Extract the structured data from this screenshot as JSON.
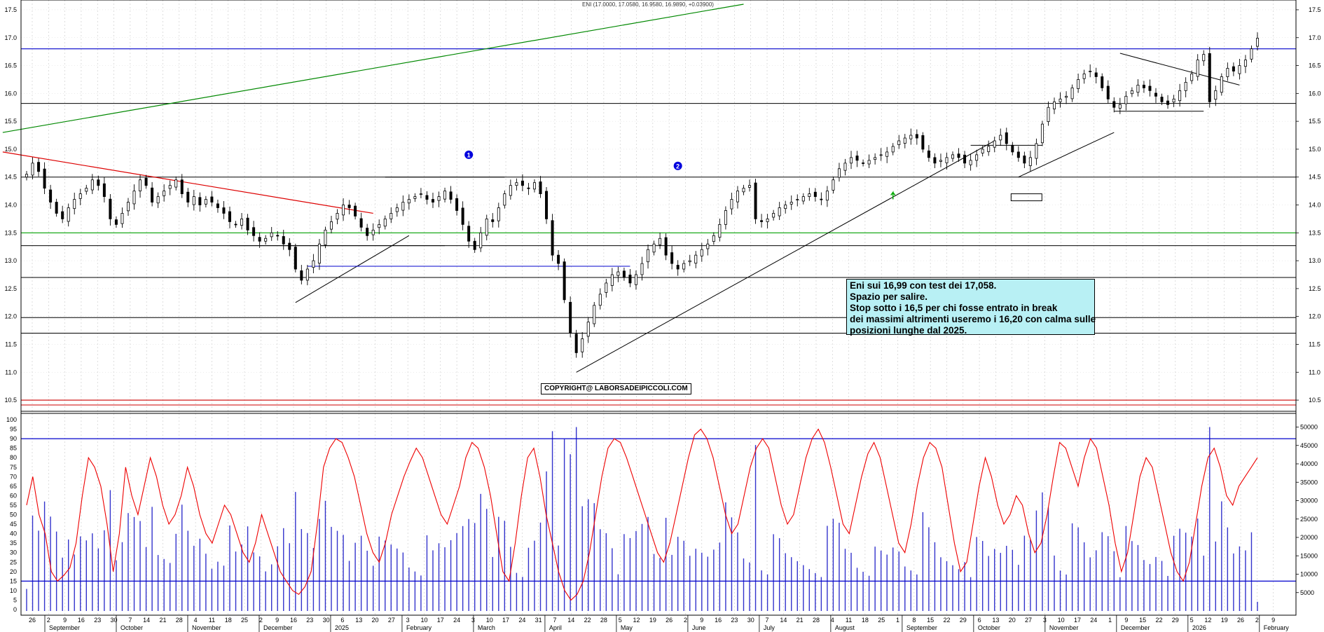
{
  "header": {
    "quote": "ENI (17.0000, 17.0580, 16.9580, 16.9890, +0.03900)"
  },
  "annotations": {
    "note_lines": [
      "Eni sui 16,99 con test dei 17,058.",
      "Spazio per salire.",
      "Stop sotto i 16,5 per chi fosse entrato in break",
      "dei massimi altrimenti useremo i 16,20 con calma sulle",
      "posizioni lunghe dal 2025."
    ],
    "copyright": "COPYRIGHT@ LABORSADEIPICCOLI.COM",
    "markers": [
      "1",
      "2"
    ]
  },
  "colors": {
    "candle": "#000000",
    "support_line": "#000000",
    "resistance_blue": "#0000cc",
    "support_green": "#00a000",
    "stop_red": "#cc0000",
    "trend_green": "#008800",
    "trend_red": "#dd0000",
    "oscillator": "#ee0000",
    "volume": "#3333cc",
    "note_bg": "#b8f0f4"
  },
  "chart_data": [
    {
      "type": "candlestick",
      "title": "ENI",
      "ylim": [
        10.35,
        17.6
      ],
      "y_ticks": [
        "10.5",
        "11.0",
        "11.5",
        "12.0",
        "12.5",
        "13.0",
        "13.5",
        "14.0",
        "14.5",
        "15.0",
        "15.5",
        "16.0",
        "16.5",
        "17.0",
        "17.5"
      ],
      "last": {
        "open": 17.0,
        "high": 17.058,
        "low": 16.958,
        "close": 16.989,
        "change": 0.039
      },
      "x_months": [
        "September",
        "October",
        "November",
        "December",
        "2025",
        "February",
        "March",
        "April",
        "May",
        "June",
        "July",
        "August",
        "September",
        "October",
        "November",
        "December",
        "2026",
        "February"
      ],
      "x_days": [
        "26",
        "2",
        "9",
        "16",
        "23",
        "30",
        "7",
        "14",
        "21",
        "28",
        "4",
        "11",
        "18",
        "25",
        "2",
        "9",
        "16",
        "23",
        "30",
        "6",
        "13",
        "20",
        "27",
        "3",
        "10",
        "17",
        "24",
        "3",
        "10",
        "17",
        "24",
        "31",
        "7",
        "14",
        "22",
        "28",
        "5",
        "12",
        "19",
        "26",
        "2",
        "9",
        "16",
        "23",
        "30",
        "7",
        "14",
        "21",
        "28",
        "4",
        "11",
        "18",
        "25",
        "1",
        "8",
        "15",
        "22",
        "29",
        "6",
        "13",
        "20",
        "27",
        "3",
        "10",
        "17",
        "24",
        "1",
        "9",
        "15",
        "22",
        "29",
        "5",
        "12",
        "19",
        "26",
        "2",
        "9"
      ],
      "horizontal_levels": [
        {
          "value": 16.8,
          "color": "blue"
        },
        {
          "value": 15.82,
          "color": "black"
        },
        {
          "value": 14.5,
          "color": "black"
        },
        {
          "value": 13.5,
          "color": "green"
        },
        {
          "value": 13.27,
          "color": "black"
        },
        {
          "value": 12.7,
          "color": "black"
        },
        {
          "value": 11.98,
          "color": "black"
        },
        {
          "value": 11.7,
          "color": "black"
        },
        {
          "value": 10.5,
          "color": "red"
        }
      ],
      "close_series": [
        14.55,
        14.75,
        14.6,
        14.3,
        14.05,
        13.85,
        13.75,
        13.95,
        14.1,
        14.2,
        14.3,
        14.45,
        14.35,
        14.15,
        13.75,
        13.65,
        13.85,
        14.05,
        14.25,
        14.45,
        14.35,
        14.05,
        14.15,
        14.25,
        14.35,
        14.45,
        14.2,
        14.05,
        14.15,
        14.0,
        14.1,
        14.05,
        13.95,
        13.85,
        13.7,
        13.65,
        13.75,
        13.55,
        13.45,
        13.35,
        13.4,
        13.5,
        13.45,
        13.3,
        13.2,
        12.85,
        12.65,
        12.85,
        13.0,
        13.3,
        13.55,
        13.7,
        13.85,
        14.0,
        13.95,
        13.8,
        13.6,
        13.45,
        13.55,
        13.65,
        13.75,
        13.85,
        13.95,
        14.05,
        14.1,
        14.15,
        14.2,
        14.1,
        14.05,
        14.15,
        14.25,
        14.1,
        13.9,
        13.65,
        13.35,
        13.2,
        13.5,
        13.75,
        13.7,
        13.95,
        14.2,
        14.35,
        14.4,
        14.35,
        14.3,
        14.4,
        14.2,
        13.75,
        13.1,
        12.95,
        12.3,
        11.7,
        11.35,
        11.6,
        11.9,
        12.2,
        12.4,
        12.6,
        12.75,
        12.8,
        12.7,
        12.6,
        12.75,
        12.95,
        13.2,
        13.3,
        13.4,
        13.1,
        12.95,
        12.85,
        12.95,
        13.0,
        13.1,
        13.2,
        13.3,
        13.45,
        13.65,
        13.9,
        14.1,
        14.25,
        14.3,
        14.35,
        13.75,
        13.7,
        13.75,
        13.85,
        13.95,
        14.0,
        14.05,
        14.1,
        14.15,
        14.2,
        14.15,
        14.1,
        14.25,
        14.45,
        14.65,
        14.75,
        14.85,
        14.8,
        14.75,
        14.8,
        14.85,
        14.9,
        14.95,
        15.05,
        15.15,
        15.2,
        15.25,
        15.2,
        15.0,
        14.85,
        14.75,
        14.8,
        14.85,
        14.9,
        14.85,
        14.75,
        14.8,
        14.9,
        15.0,
        15.05,
        15.15,
        15.25,
        15.1,
        14.95,
        14.85,
        14.75,
        14.85,
        15.1,
        15.45,
        15.75,
        15.85,
        15.9,
        15.95,
        16.1,
        16.25,
        16.35,
        16.4,
        16.3,
        16.1,
        15.9,
        15.75,
        15.8,
        15.95,
        16.05,
        16.15,
        16.1,
        16.05,
        15.95,
        15.85,
        15.8,
        15.9,
        16.05,
        16.2,
        16.35,
        16.6,
        16.7,
        15.85,
        16.05,
        16.3,
        16.45,
        16.4,
        16.5,
        16.6,
        16.8,
        16.99
      ],
      "oscillator_series": [
        55,
        70,
        50,
        40,
        20,
        15,
        18,
        22,
        35,
        60,
        80,
        75,
        65,
        45,
        20,
        40,
        75,
        60,
        50,
        65,
        80,
        70,
        55,
        45,
        50,
        60,
        75,
        65,
        50,
        40,
        35,
        45,
        55,
        50,
        40,
        30,
        25,
        35,
        50,
        40,
        30,
        20,
        15,
        10,
        8,
        12,
        20,
        45,
        75,
        85,
        90,
        88,
        80,
        70,
        55,
        40,
        30,
        25,
        35,
        50,
        60,
        70,
        78,
        85,
        80,
        70,
        60,
        50,
        45,
        55,
        65,
        80,
        88,
        85,
        75,
        60,
        40,
        20,
        15,
        35,
        60,
        80,
        85,
        70,
        50,
        35,
        20,
        10,
        5,
        8,
        15,
        30,
        50,
        70,
        85,
        90,
        88,
        80,
        70,
        60,
        50,
        40,
        30,
        25,
        35,
        50,
        65,
        80,
        92,
        95,
        90,
        80,
        65,
        50,
        40,
        45,
        60,
        75,
        85,
        90,
        85,
        70,
        55,
        45,
        50,
        65,
        80,
        90,
        95,
        88,
        75,
        60,
        45,
        40,
        55,
        70,
        82,
        88,
        80,
        65,
        50,
        35,
        30,
        45,
        65,
        80,
        88,
        85,
        75,
        55,
        35,
        20,
        25,
        45,
        65,
        80,
        70,
        55,
        45,
        50,
        60,
        55,
        40,
        30,
        35,
        50,
        70,
        88,
        85,
        75,
        65,
        80,
        90,
        85,
        70,
        55,
        35,
        20,
        30,
        50,
        70,
        80,
        75,
        60,
        45,
        30,
        20,
        15,
        25,
        45,
        65,
        80,
        85,
        75,
        60,
        55,
        65,
        70,
        75,
        80
      ],
      "oscillator_ylim": [
        0,
        100
      ],
      "oscillator_levels": [
        90,
        15
      ],
      "oscillator_ticks": [
        "0",
        "5",
        "10",
        "15",
        "20",
        "25",
        "30",
        "35",
        "40",
        "45",
        "50",
        "55",
        "60",
        "65",
        "70",
        "75",
        "80",
        "85",
        "90",
        "95",
        "100"
      ],
      "volume_ticks": [
        "5000",
        "10000",
        "15000",
        "20000",
        "25000",
        "30000",
        "35000",
        "40000",
        "45000",
        "50000"
      ],
      "volume_ylim": [
        0,
        52000
      ]
    }
  ]
}
